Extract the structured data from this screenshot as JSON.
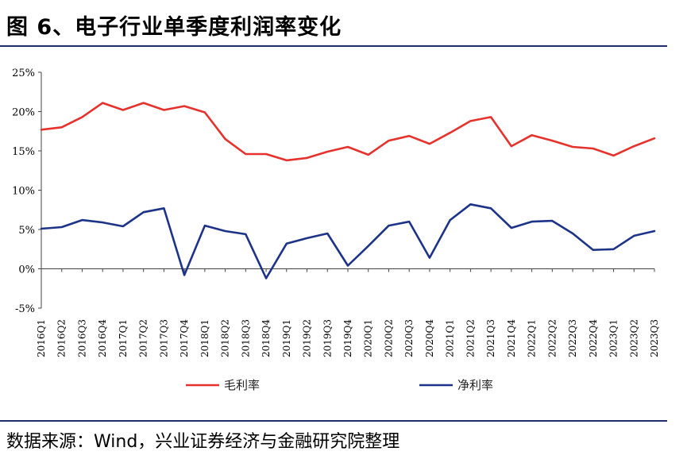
{
  "title": "图 6、电子行业单季度利润率变化",
  "source": "数据来源：Wind，兴业证券经济与金融研究院整理",
  "chart_data": {
    "type": "line",
    "categories": [
      "2016Q1",
      "2016Q2",
      "2016Q3",
      "2016Q4",
      "2017Q1",
      "2017Q2",
      "2017Q3",
      "2017Q4",
      "2018Q1",
      "2018Q2",
      "2018Q3",
      "2018Q4",
      "2019Q1",
      "2019Q2",
      "2019Q3",
      "2019Q4",
      "2020Q1",
      "2020Q2",
      "2020Q3",
      "2020Q4",
      "2021Q1",
      "2021Q2",
      "2021Q3",
      "2021Q4",
      "2022Q1",
      "2022Q2",
      "2022Q3",
      "2022Q4",
      "2023Q1",
      "2023Q2",
      "2023Q3"
    ],
    "series": [
      {
        "name": "毛利率",
        "color": "#e5322d",
        "values": [
          17.7,
          18.0,
          19.3,
          21.1,
          20.2,
          21.1,
          20.2,
          20.7,
          19.9,
          16.5,
          14.6,
          14.6,
          13.8,
          14.1,
          14.9,
          15.5,
          14.5,
          16.3,
          16.9,
          15.9,
          17.3,
          18.8,
          19.3,
          15.6,
          17.0,
          16.3,
          15.5,
          15.3,
          14.4,
          15.6,
          16.6
        ]
      },
      {
        "name": "净利率",
        "color": "#1c3388",
        "values": [
          5.1,
          5.3,
          6.2,
          5.9,
          5.4,
          7.2,
          7.7,
          -0.8,
          5.5,
          4.8,
          4.4,
          -1.2,
          3.2,
          3.9,
          4.5,
          0.4,
          2.9,
          5.5,
          6.0,
          1.4,
          6.2,
          8.2,
          7.7,
          5.2,
          6.0,
          6.1,
          4.5,
          2.4,
          2.5,
          4.2,
          4.8
        ]
      }
    ],
    "yticks": [
      "25%",
      "20%",
      "15%",
      "10%",
      "5%",
      "0%",
      "-5%"
    ],
    "ylim": [
      -5,
      25
    ],
    "legend_position": "bottom"
  }
}
